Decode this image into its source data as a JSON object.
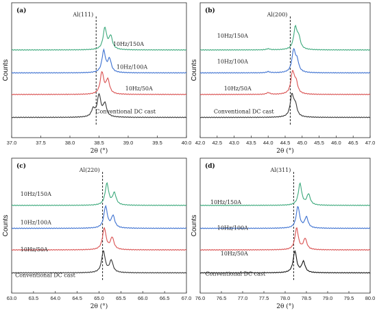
{
  "chart_data": [
    {
      "type": "line",
      "panel": "(a)",
      "xlabel": "2θ (°)",
      "ylabel": "Counts",
      "xlim": [
        37.0,
        40.0
      ],
      "xticks": [
        "37.0",
        "37.5",
        "38.0",
        "38.5",
        "39.0",
        "39.5",
        "40.0"
      ],
      "reference_line": {
        "label": "Al(111)",
        "x": 38.45
      },
      "series": [
        {
          "name": "10Hz/150A",
          "color": "#3aa87a",
          "peaks": [
            [
              38.6,
              1.0
            ],
            [
              38.7,
              0.6
            ]
          ]
        },
        {
          "name": "10Hz/100A",
          "color": "#3a6fd0",
          "peaks": [
            [
              38.58,
              1.0
            ],
            [
              38.68,
              0.6
            ]
          ]
        },
        {
          "name": "10Hz/50A",
          "color": "#d94f4f",
          "peaks": [
            [
              38.55,
              1.0
            ],
            [
              38.65,
              0.65
            ]
          ]
        },
        {
          "name": "Conventional DC cast",
          "color": "#333333",
          "peaks": [
            [
              38.5,
              1.0
            ],
            [
              38.6,
              0.6
            ],
            [
              38.4,
              0.35
            ]
          ]
        }
      ]
    },
    {
      "type": "line",
      "panel": "(b)",
      "xlabel": "2θ (°)",
      "ylabel": "Counts",
      "xlim": [
        42.0,
        47.0
      ],
      "xticks": [
        "42.0",
        "42.5",
        "43.0",
        "43.5",
        "44.0",
        "44.5",
        "45.0",
        "45.5",
        "46.0",
        "46.5",
        "47.0"
      ],
      "reference_line": {
        "label": "Al(200)",
        "x": 44.65
      },
      "series": [
        {
          "name": "10Hz/150A",
          "color": "#3aa87a",
          "peaks": [
            [
              44.8,
              1.0
            ],
            [
              44.9,
              0.5
            ],
            [
              44.0,
              0.05
            ]
          ]
        },
        {
          "name": "10Hz/100A",
          "color": "#3a6fd0",
          "peaks": [
            [
              44.75,
              1.0
            ],
            [
              44.85,
              0.5
            ],
            [
              44.0,
              0.05
            ]
          ]
        },
        {
          "name": "10Hz/50A",
          "color": "#d94f4f",
          "peaks": [
            [
              44.72,
              1.0
            ],
            [
              44.82,
              0.5
            ],
            [
              44.0,
              0.08
            ]
          ]
        },
        {
          "name": "Conventional DC cast",
          "color": "#333333",
          "peaks": [
            [
              44.7,
              1.0
            ],
            [
              44.8,
              0.5
            ]
          ]
        }
      ]
    },
    {
      "type": "line",
      "panel": "(c)",
      "xlabel": "2θ (°)",
      "ylabel": "Counts",
      "xlim": [
        63.0,
        67.0
      ],
      "xticks": [
        "63.0",
        "63.5",
        "64.0",
        "64.5",
        "65.0",
        "65.5",
        "66.0",
        "66.5",
        "67.0"
      ],
      "reference_line": {
        "label": "Al(220)",
        "x": 65.08
      },
      "series": [
        {
          "name": "10Hz/150A",
          "color": "#3aa87a",
          "peaks": [
            [
              65.18,
              1.0
            ],
            [
              65.35,
              0.55
            ]
          ]
        },
        {
          "name": "10Hz/100A",
          "color": "#3a6fd0",
          "peaks": [
            [
              65.15,
              1.0
            ],
            [
              65.32,
              0.55
            ]
          ]
        },
        {
          "name": "10Hz/50A",
          "color": "#d94f4f",
          "peaks": [
            [
              65.12,
              1.0
            ],
            [
              65.3,
              0.55
            ]
          ]
        },
        {
          "name": "Conventional DC cast",
          "color": "#333333",
          "peaks": [
            [
              65.1,
              1.0
            ],
            [
              65.28,
              0.55
            ]
          ]
        }
      ]
    },
    {
      "type": "line",
      "panel": "(d)",
      "xlabel": "2θ (°)",
      "ylabel": "Counts",
      "xlim": [
        76.0,
        80.0
      ],
      "xticks": [
        "76.0",
        "76.5",
        "77.0",
        "77.5",
        "78.0",
        "78.5",
        "79.0",
        "79.5",
        "80.0"
      ],
      "reference_line": {
        "label": "Al(311)",
        "x": 78.2
      },
      "series": [
        {
          "name": "10Hz/150A",
          "color": "#3aa87a",
          "peaks": [
            [
              78.35,
              1.0
            ],
            [
              78.55,
              0.5
            ]
          ]
        },
        {
          "name": "10Hz/100A",
          "color": "#3a6fd0",
          "peaks": [
            [
              78.3,
              1.0
            ],
            [
              78.5,
              0.5
            ]
          ]
        },
        {
          "name": "10Hz/50A",
          "color": "#d94f4f",
          "peaks": [
            [
              78.27,
              1.0
            ],
            [
              78.47,
              0.5
            ]
          ]
        },
        {
          "name": "Conventional DC cast",
          "color": "#111111",
          "peaks": [
            [
              78.23,
              1.0
            ],
            [
              78.43,
              0.5
            ]
          ]
        }
      ]
    }
  ]
}
